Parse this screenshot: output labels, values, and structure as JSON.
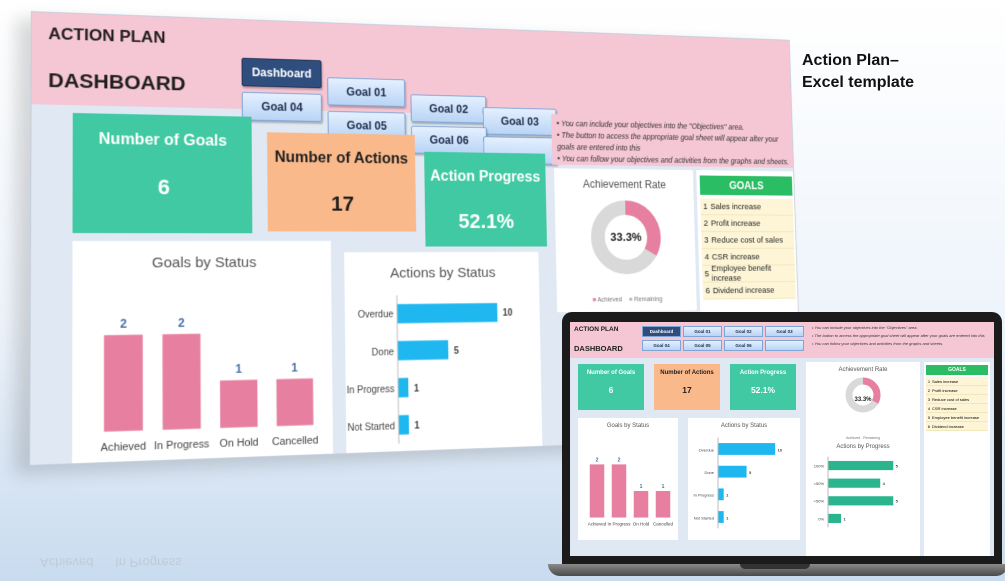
{
  "caption": {
    "line1": "Action Plan–",
    "line2": "Excel template"
  },
  "header": {
    "title1": "ACTION PLAN",
    "title2": "DASHBOARD"
  },
  "nav": [
    {
      "label": "Dashboard",
      "active": true
    },
    {
      "label": "Goal 01",
      "active": false
    },
    {
      "label": "Goal 02",
      "active": false
    },
    {
      "label": "Goal 03",
      "active": false
    },
    {
      "label": "Goal 04",
      "active": false
    },
    {
      "label": "Goal 05",
      "active": false
    },
    {
      "label": "Goal 06",
      "active": false
    },
    {
      "label": "",
      "active": false
    }
  ],
  "notes": [
    "• You can include your objectives into the \"Objectives\" area.",
    "• The button to access the appropriate goal sheet will appear after your goals are entered into this",
    "• You can follow your objectives and activities from the graphs and sheets."
  ],
  "kpis": {
    "goals": {
      "label": "Number of Goals",
      "value": "6",
      "color": "#40c9a2"
    },
    "actions": {
      "label": "Number of Actions",
      "value": "17",
      "color": "#f9b98a"
    },
    "progress": {
      "label": "Action Progress",
      "value": "52.1%",
      "color": "#40c9a2"
    }
  },
  "achievement": {
    "title": "Achievement Rate",
    "center_label": "33.3%",
    "legend": [
      "Achieved",
      "Remaining"
    ],
    "colors": {
      "achieved": "#e77fa0",
      "remaining": "#d9d9d9"
    }
  },
  "goals_panel": {
    "header": "GOALS",
    "items": [
      {
        "num": "1",
        "label": "Sales increase"
      },
      {
        "num": "2",
        "label": "Profit increase"
      },
      {
        "num": "3",
        "label": "Reduce cost of sales"
      },
      {
        "num": "4",
        "label": "CSR increase"
      },
      {
        "num": "5",
        "label": "Employee benefit increase"
      },
      {
        "num": "6",
        "label": "Dividend increase"
      }
    ]
  },
  "chart_data": [
    {
      "type": "bar",
      "title": "Goals by Status",
      "categories": [
        "Achieved",
        "In Progress",
        "On Hold",
        "Cancelled"
      ],
      "values": [
        2,
        2,
        1,
        1
      ],
      "ylim": [
        0,
        2.6
      ],
      "color": "#e77fa0"
    },
    {
      "type": "bar",
      "orientation": "horizontal",
      "title": "Actions by Status",
      "categories": [
        "Overdue",
        "Done",
        "In Progress",
        "Not Started"
      ],
      "values": [
        10,
        5,
        1,
        1
      ],
      "xlim": [
        0,
        12
      ],
      "color": "#1fb7ef"
    },
    {
      "type": "pie",
      "title": "Achievement Rate",
      "categories": [
        "Achieved",
        "Remaining"
      ],
      "values": [
        33.3,
        66.7
      ]
    },
    {
      "type": "bar",
      "orientation": "horizontal",
      "title": "Actions by Progress",
      "categories": [
        "100%",
        ">50%",
        "<50%",
        "0%"
      ],
      "values": [
        5,
        4,
        5,
        1
      ],
      "xlim": [
        0,
        6
      ],
      "color": "#2bb58f"
    }
  ]
}
